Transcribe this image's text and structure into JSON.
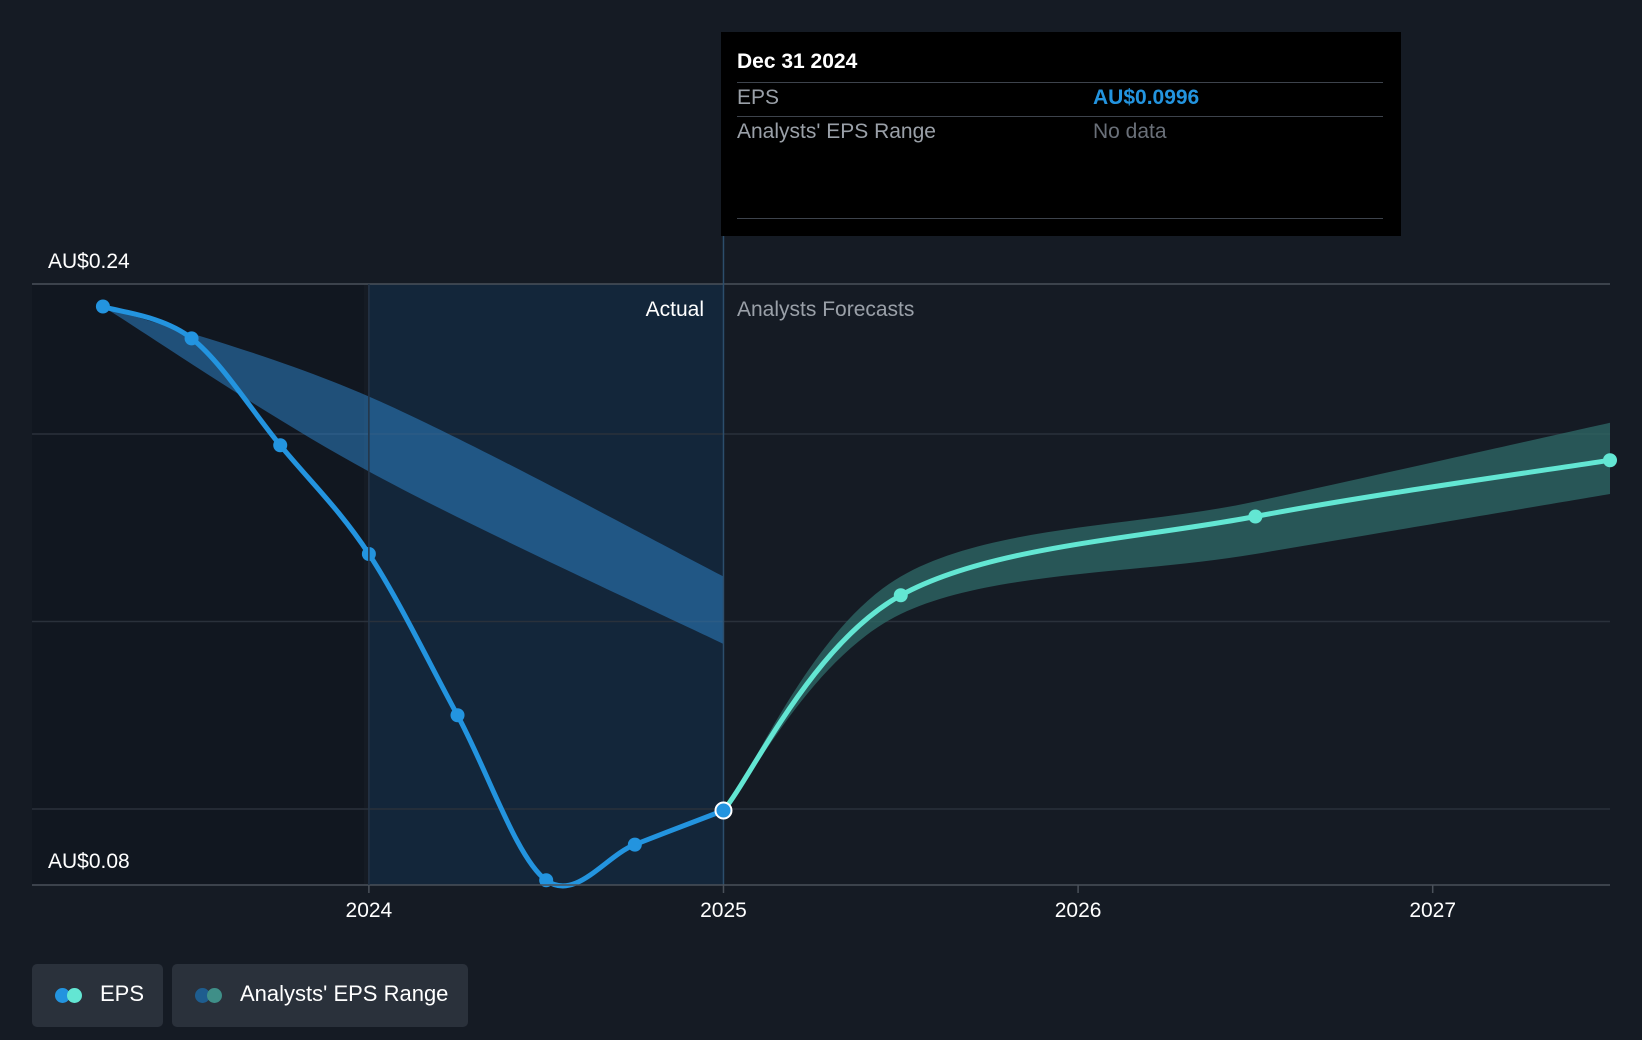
{
  "chart_data": {
    "type": "line",
    "y_axis": {
      "top_label": "AU$0.24",
      "bottom_label": "AU$0.08",
      "ylim": [
        0.08,
        0.24
      ]
    },
    "x_axis": {
      "ticks": [
        "2024",
        "2025",
        "2026",
        "2027"
      ],
      "tick_values": [
        2024.0,
        2025.0,
        2026.0,
        2027.0
      ],
      "xlim": [
        2023.05,
        2027.5
      ]
    },
    "divider_x": 2025.0,
    "highlight_start_x": 2024.0,
    "section_labels": {
      "actual": "Actual",
      "forecast": "Analysts Forecasts"
    },
    "series": [
      {
        "name": "EPS",
        "kind": "actual",
        "color": "#2394df",
        "x": [
          2023.25,
          2023.5,
          2023.75,
          2024.0,
          2024.25,
          2024.5,
          2024.75,
          2025.0
        ],
        "y": [
          0.234,
          0.2255,
          0.197,
          0.168,
          0.125,
          0.081,
          0.0905,
          0.0996
        ]
      },
      {
        "name": "EPS",
        "kind": "forecast",
        "color": "#63e6d3",
        "x": [
          2025.0,
          2025.5,
          2026.5,
          2027.5
        ],
        "y": [
          0.0996,
          0.157,
          0.178,
          0.193
        ]
      }
    ],
    "past_estimate_band": {
      "color": "#2e7fc2",
      "x": [
        2023.25,
        2024.0,
        2025.0
      ],
      "high": [
        0.234,
        0.21,
        0.162
      ],
      "low": [
        0.234,
        0.19,
        0.144
      ]
    },
    "forecast_band": {
      "color": "#2f6b68",
      "x": [
        2025.0,
        2025.5,
        2026.5,
        2027.5
      ],
      "high": [
        0.0996,
        0.162,
        0.182,
        0.203
      ],
      "low": [
        0.0996,
        0.152,
        0.168,
        0.184
      ]
    },
    "highlighted_point": {
      "x": 2025.0,
      "y": 0.0996
    },
    "tooltip": {
      "date": "Dec 31 2024",
      "rows": [
        {
          "label": "EPS",
          "value": "AU$0.0996"
        },
        {
          "label": "Analysts' EPS Range",
          "value": "No data"
        }
      ]
    },
    "legend": [
      {
        "label": "EPS",
        "colors": [
          "#2394df",
          "#63e6d3"
        ]
      },
      {
        "label": "Analysts' EPS Range",
        "colors": [
          "#1e5d8f",
          "#3f8f88"
        ]
      }
    ]
  }
}
